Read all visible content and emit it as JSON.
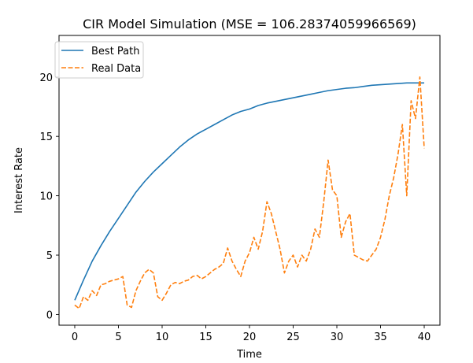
{
  "chart_data": {
    "type": "line",
    "title": "CIR Model Simulation (MSE = 106.28374059966569)",
    "xlabel": "Time",
    "ylabel": "Interest Rate",
    "xlim": [
      -1.8,
      41.8
    ],
    "ylim": [
      -0.9,
      23.5
    ],
    "xticks": [
      0,
      5,
      10,
      15,
      20,
      25,
      30,
      35,
      40
    ],
    "yticks": [
      0,
      5,
      10,
      15,
      20
    ],
    "grid": false,
    "legend": "top-left",
    "series": [
      {
        "name": "Best Path",
        "style": "solid",
        "color": "#1f77b4",
        "x": [
          0,
          1,
          2,
          3,
          4,
          5,
          6,
          7,
          8,
          9,
          10,
          11,
          12,
          13,
          14,
          15,
          16,
          17,
          18,
          19,
          20,
          21,
          22,
          23,
          24,
          25,
          26,
          27,
          28,
          29,
          30,
          31,
          32,
          33,
          34,
          35,
          36,
          37,
          38,
          39,
          40
        ],
        "y": [
          1.2,
          2.9,
          4.5,
          5.8,
          7.0,
          8.1,
          9.2,
          10.3,
          11.2,
          12.0,
          12.7,
          13.4,
          14.1,
          14.7,
          15.2,
          15.6,
          16.0,
          16.4,
          16.8,
          17.1,
          17.3,
          17.6,
          17.8,
          17.95,
          18.1,
          18.25,
          18.4,
          18.55,
          18.7,
          18.85,
          18.95,
          19.05,
          19.1,
          19.2,
          19.3,
          19.35,
          19.4,
          19.45,
          19.5,
          19.5,
          19.5
        ]
      },
      {
        "name": "Real Data",
        "style": "dashed",
        "color": "#ff7f0e",
        "x": [
          0,
          0.5,
          1,
          1.5,
          2,
          2.5,
          3,
          3.5,
          4,
          4.5,
          5,
          5.5,
          6,
          6.5,
          7,
          7.5,
          8,
          8.5,
          9,
          9.5,
          10,
          10.5,
          11,
          11.5,
          12,
          12.5,
          13,
          13.5,
          14,
          14.5,
          15,
          15.5,
          16,
          16.5,
          17,
          17.5,
          18,
          18.5,
          19,
          19.5,
          20,
          20.5,
          21,
          21.5,
          22,
          22.5,
          23,
          23.5,
          24,
          24.5,
          25,
          25.5,
          26,
          26.5,
          27,
          27.5,
          28,
          28.5,
          29,
          29.5,
          30,
          30.5,
          31,
          31.5,
          32,
          32.5,
          33,
          33.5,
          34,
          34.5,
          35,
          35.5,
          36,
          36.5,
          37,
          37.5,
          38,
          38.5,
          39,
          39.5,
          40
        ],
        "y": [
          0.8,
          0.5,
          1.5,
          1.2,
          2.0,
          1.6,
          2.5,
          2.6,
          2.8,
          2.9,
          3.0,
          3.2,
          0.8,
          0.6,
          2.0,
          2.8,
          3.5,
          3.8,
          3.5,
          1.5,
          1.2,
          1.8,
          2.5,
          2.7,
          2.6,
          2.8,
          2.9,
          3.2,
          3.3,
          3.0,
          3.2,
          3.5,
          3.8,
          4.0,
          4.3,
          5.6,
          4.5,
          3.8,
          3.2,
          4.5,
          5.2,
          6.5,
          5.5,
          7.0,
          9.5,
          8.5,
          7.0,
          5.5,
          3.5,
          4.5,
          5.0,
          4.0,
          5.0,
          4.5,
          5.5,
          7.2,
          6.5,
          9.5,
          13.0,
          10.5,
          10.0,
          6.5,
          7.8,
          8.5,
          5.0,
          4.8,
          4.6,
          4.5,
          5.0,
          5.5,
          6.5,
          8.0,
          10.0,
          11.5,
          13.5,
          16.0,
          10.0,
          18.0,
          16.5,
          20.0,
          14.0
        ]
      }
    ]
  }
}
